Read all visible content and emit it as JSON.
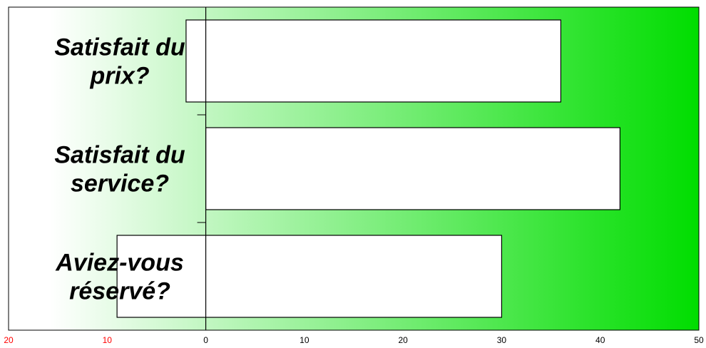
{
  "chart_data": {
    "type": "bar",
    "orientation": "horizontal",
    "categories": [
      "Satisfait du prix?",
      "Satisfait du service?",
      "Aviez-vous réservé?"
    ],
    "category_lines": [
      [
        "Satisfait du",
        "prix?"
      ],
      [
        "Satisfait du",
        "service?"
      ],
      [
        "Aviez-vous",
        "réservé?"
      ]
    ],
    "series": [
      {
        "values": [
          -2,
          0,
          -9
        ]
      },
      {
        "values": [
          36,
          42,
          30
        ]
      }
    ],
    "xlim": [
      -20,
      50
    ],
    "xticks": [
      {
        "label": "20",
        "value": -20,
        "color": "#ff0000"
      },
      {
        "label": "10",
        "value": -10,
        "color": "#ff0000"
      },
      {
        "label": "0",
        "value": 0,
        "color": "#000000"
      },
      {
        "label": "10",
        "value": 10,
        "color": "#000000"
      },
      {
        "label": "20",
        "value": 20,
        "color": "#000000"
      },
      {
        "label": "30",
        "value": 30,
        "color": "#000000"
      },
      {
        "label": "40",
        "value": 40,
        "color": "#000000"
      },
      {
        "label": "50",
        "value": 50,
        "color": "#000000"
      }
    ],
    "background": {
      "gradient_from": "#ffffff",
      "gradient_to": "#00dd00"
    },
    "bar_fill": "#ffffff",
    "bar_stroke": "#000000",
    "grid": false,
    "title": "",
    "xlabel": "",
    "ylabel": ""
  }
}
